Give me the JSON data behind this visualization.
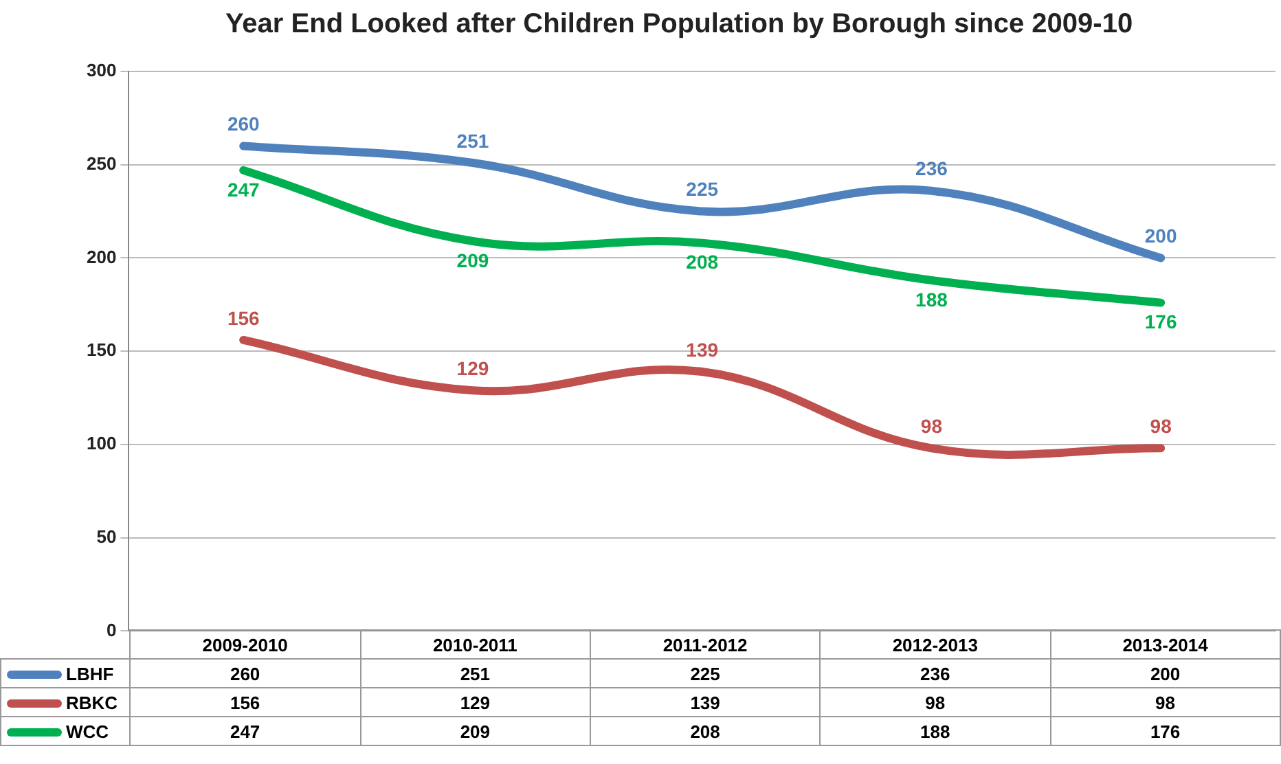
{
  "chart_data": {
    "type": "line",
    "title": "Year End Looked after Children Population by Borough since 2009-10",
    "categories": [
      "2009-2010",
      "2010-2011",
      "2011-2012",
      "2012-2013",
      "2013-2014"
    ],
    "series": [
      {
        "name": "LBHF",
        "color": "#4f81bd",
        "values": [
          260,
          251,
          225,
          236,
          200
        ],
        "value_labels": [
          "260",
          "251",
          "225",
          "236",
          "200"
        ]
      },
      {
        "name": "RBKC",
        "color": "#c0504d",
        "values": [
          156,
          129,
          139,
          98,
          98
        ],
        "value_labels": [
          "156",
          "129",
          "139",
          "98",
          "98"
        ]
      },
      {
        "name": "WCC",
        "color": "#00b050",
        "values": [
          247,
          209,
          208,
          188,
          176
        ],
        "value_labels": [
          "247",
          "209",
          "208",
          "188",
          "176"
        ]
      }
    ],
    "annotations": [
      "260",
      "251",
      "225",
      "236",
      "200",
      "156",
      "129",
      "139",
      "98",
      "98",
      "247",
      "209",
      "208",
      "188",
      "176"
    ],
    "ylim": [
      0,
      300
    ],
    "yticks": [
      0,
      50,
      100,
      150,
      200,
      250,
      300
    ],
    "grid": "y",
    "legend": "bottom left",
    "marker": "none",
    "line_style": "solid",
    "tick_labels": "y"
  }
}
